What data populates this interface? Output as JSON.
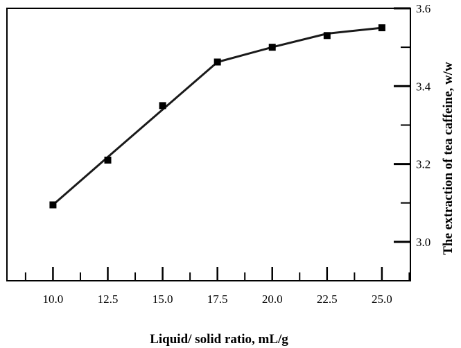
{
  "chart_data": {
    "type": "line",
    "title": "",
    "xlabel": "Liquid/ solid ratio, mL/g",
    "ylabel": "The extraction of tea caffeine, w/w",
    "xlim": [
      7.9,
      26.3
    ],
    "ylim": [
      2.9,
      3.6
    ],
    "y_axis_position": "right",
    "grid": false,
    "x_ticks": [
      10.0,
      12.5,
      15.0,
      17.5,
      20.0,
      22.5,
      25.0
    ],
    "x_tick_labels": [
      "10.0",
      "12.5",
      "15.0",
      "17.5",
      "20.0",
      "22.5",
      "25.0"
    ],
    "y_ticks": [
      3.0,
      3.2,
      3.4,
      3.6
    ],
    "y_tick_labels": [
      "3.0",
      "3.2",
      "3.4",
      "3.6"
    ],
    "series": [
      {
        "x": [
          10.0,
          12.5,
          15.0,
          17.5,
          20.0,
          22.5,
          25.0
        ],
        "y": [
          3.095,
          3.21,
          3.35,
          3.462,
          3.5,
          3.53,
          3.55
        ],
        "marker": "square",
        "color": "#000000"
      }
    ],
    "line_path": {
      "x": [
        10.0,
        12.5,
        15.0,
        17.5,
        20.0,
        22.5,
        25.0
      ],
      "y": [
        3.095,
        3.218,
        3.34,
        3.462,
        3.5,
        3.535,
        3.55
      ]
    }
  }
}
